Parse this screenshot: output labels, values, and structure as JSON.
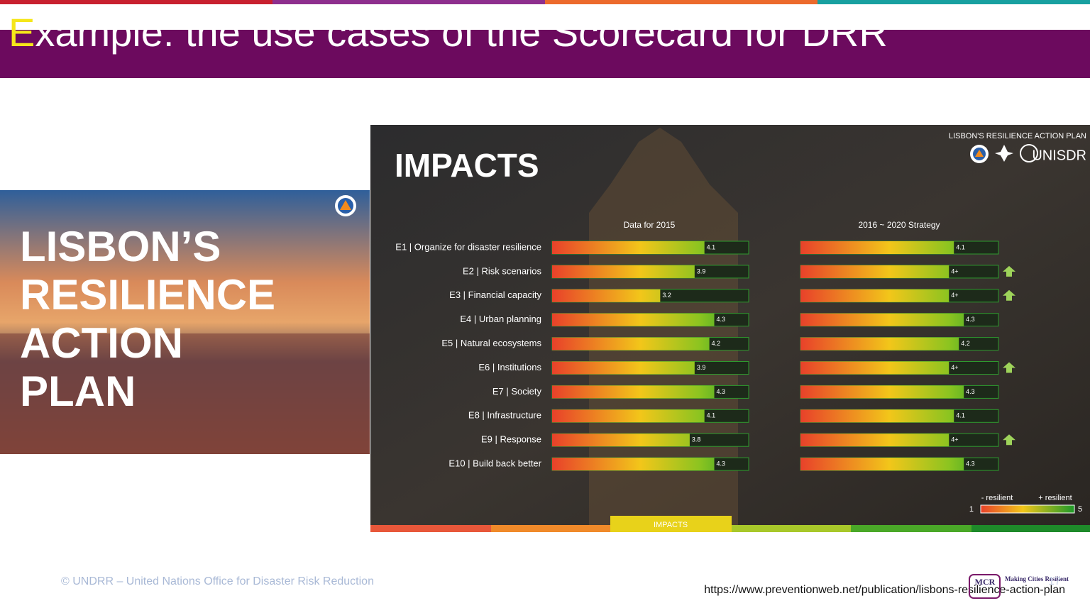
{
  "header": {
    "title_initial": "E",
    "title_rest": "xample: the use cases of the Scorecard for DRR"
  },
  "left_image": {
    "lines": [
      "LISBON’S",
      "RESILIENCE",
      "ACTION",
      "PLAN"
    ]
  },
  "impacts": {
    "title": "IMPACTS",
    "brand": "LISBON'S RESILIENCE ACTION PLAN",
    "org": "UNISDR",
    "col_headers": [
      "Data for 2015",
      "2016 ~ 2020 Strategy"
    ],
    "xlim": [
      1,
      5
    ],
    "rows": [
      {
        "label": "E1 | Organize for disaster resilience",
        "data_2015": 4.1,
        "strategy": 4.1
      },
      {
        "label": "E2 | Risk scenarios",
        "data_2015": 3.9,
        "strategy": 4,
        "strategy_label": "4+"
      },
      {
        "label": "E3 | Financial capacity",
        "data_2015": 3.2,
        "strategy": 4,
        "strategy_label": "4+"
      },
      {
        "label": "E4 | Urban planning",
        "data_2015": 4.3,
        "strategy": 4.3
      },
      {
        "label": "E5 | Natural ecosystems",
        "data_2015": 4.2,
        "strategy": 4.2
      },
      {
        "label": "E6 | Institutions",
        "data_2015": 3.9,
        "strategy": 4,
        "strategy_label": "4+"
      },
      {
        "label": "E7 | Society",
        "data_2015": 4.3,
        "strategy": 4.3
      },
      {
        "label": "E8 | Infrastructure",
        "data_2015": 4.1,
        "strategy": 4.1
      },
      {
        "label": "E9 | Response",
        "data_2015": 3.8,
        "strategy": 4,
        "strategy_label": "4+"
      },
      {
        "label": "E10 | Build back better",
        "data_2015": 4.3,
        "strategy": 4.3
      }
    ],
    "legend": {
      "low": "- resilient",
      "high": "+ resilient",
      "min": 1,
      "max": 5
    },
    "tab": "IMPACTS"
  },
  "footer": {
    "copyright": "© UNDRR – United Nations Office for Disaster Risk Reduction",
    "url": "https://www.preventionweb.net/publication/lisbons-resilience-action-plan",
    "page": "17",
    "logo": "MCR",
    "logo_text": "Making Cities Resilient"
  }
}
